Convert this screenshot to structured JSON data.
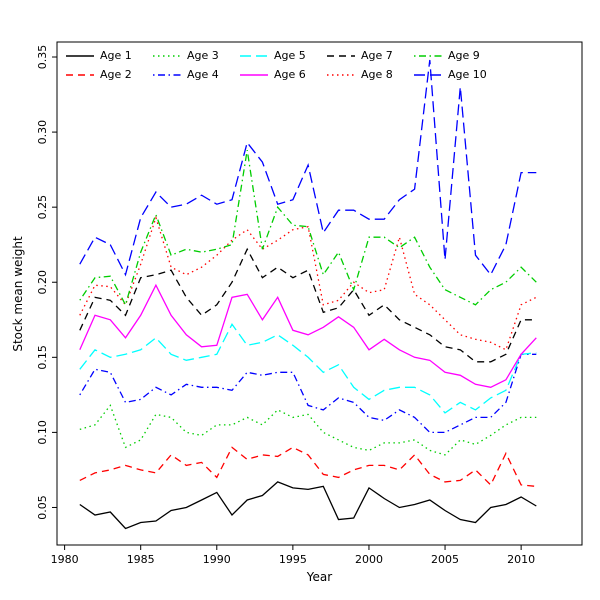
{
  "chart_data": {
    "type": "line",
    "title": "",
    "xlabel": "Year",
    "ylabel": "Stock mean weight",
    "legend_position": "top-inside",
    "grid": false,
    "xlim": [
      1979.5,
      2014
    ],
    "ylim": [
      0.025,
      0.36
    ],
    "x_ticks": [
      1980,
      1985,
      1990,
      1995,
      2000,
      2005,
      2010
    ],
    "y_ticks": [
      0.05,
      0.1,
      0.15,
      0.2,
      0.25,
      0.3,
      0.35
    ],
    "y_tick_labels": [
      "0.05",
      "0.10",
      "0.15",
      "0.20",
      "0.25",
      "0.30",
      "0.35"
    ],
    "x": [
      1981,
      1982,
      1983,
      1984,
      1985,
      1986,
      1987,
      1988,
      1989,
      1990,
      1991,
      1992,
      1993,
      1994,
      1995,
      1996,
      1997,
      1998,
      1999,
      2000,
      2001,
      2002,
      2003,
      2004,
      2005,
      2006,
      2007,
      2008,
      2009,
      2010,
      2011
    ],
    "series": [
      {
        "name": "Age 1",
        "color": "#000000",
        "line_style": "solid",
        "dash": "",
        "values": [
          0.052,
          0.045,
          0.047,
          0.036,
          0.04,
          0.041,
          0.048,
          0.05,
          0.055,
          0.06,
          0.045,
          0.055,
          0.058,
          0.067,
          0.063,
          0.062,
          0.064,
          0.042,
          0.043,
          0.063,
          0.056,
          0.05,
          0.052,
          0.055,
          0.048,
          0.042,
          0.04,
          0.05,
          0.052,
          0.057,
          0.051
        ]
      },
      {
        "name": "Age 2",
        "color": "#ff0000",
        "line_style": "dashed",
        "dash": "7,5",
        "values": [
          0.068,
          0.073,
          0.075,
          0.078,
          0.075,
          0.073,
          0.085,
          0.078,
          0.08,
          0.07,
          0.09,
          0.082,
          0.085,
          0.084,
          0.09,
          0.085,
          0.072,
          0.07,
          0.075,
          0.078,
          0.078,
          0.075,
          0.085,
          0.072,
          0.067,
          0.068,
          0.075,
          0.065,
          0.086,
          0.065,
          0.064
        ]
      },
      {
        "name": "Age 3",
        "color": "#00cd00",
        "line_style": "dotted",
        "dash": "1.5,3.5",
        "values": [
          0.102,
          0.105,
          0.118,
          0.09,
          0.095,
          0.112,
          0.11,
          0.1,
          0.098,
          0.105,
          0.105,
          0.11,
          0.105,
          0.115,
          0.11,
          0.112,
          0.1,
          0.095,
          0.09,
          0.088,
          0.093,
          0.093,
          0.095,
          0.088,
          0.085,
          0.095,
          0.092,
          0.098,
          0.105,
          0.11,
          0.11
        ]
      },
      {
        "name": "Age 4",
        "color": "#0000ff",
        "line_style": "dotdash",
        "dash": "1.5,3.5,7,3.5",
        "values": [
          0.125,
          0.142,
          0.14,
          0.12,
          0.122,
          0.13,
          0.125,
          0.132,
          0.13,
          0.13,
          0.128,
          0.14,
          0.138,
          0.14,
          0.14,
          0.118,
          0.115,
          0.123,
          0.12,
          0.11,
          0.108,
          0.115,
          0.11,
          0.1,
          0.1,
          0.105,
          0.11,
          0.11,
          0.12,
          0.152,
          0.152
        ]
      },
      {
        "name": "Age 5",
        "color": "#00ffff",
        "line_style": "longdash",
        "dash": "11,5",
        "values": [
          0.142,
          0.155,
          0.15,
          0.152,
          0.155,
          0.163,
          0.152,
          0.148,
          0.15,
          0.152,
          0.172,
          0.158,
          0.16,
          0.165,
          0.158,
          0.15,
          0.14,
          0.145,
          0.13,
          0.122,
          0.128,
          0.13,
          0.13,
          0.125,
          0.113,
          0.12,
          0.115,
          0.123,
          0.128,
          0.152,
          0.153
        ]
      },
      {
        "name": "Age 6",
        "color": "#ff00ff",
        "line_style": "solid",
        "dash": "",
        "values": [
          0.155,
          0.178,
          0.175,
          0.163,
          0.178,
          0.198,
          0.178,
          0.165,
          0.157,
          0.158,
          0.19,
          0.192,
          0.175,
          0.19,
          0.168,
          0.165,
          0.17,
          0.177,
          0.17,
          0.155,
          0.162,
          0.155,
          0.15,
          0.148,
          0.14,
          0.138,
          0.132,
          0.13,
          0.135,
          0.152,
          0.163
        ]
      },
      {
        "name": "Age 7",
        "color": "#000000",
        "line_style": "dashed",
        "dash": "7,5",
        "values": [
          0.168,
          0.19,
          0.188,
          0.178,
          0.203,
          0.205,
          0.208,
          0.19,
          0.178,
          0.185,
          0.2,
          0.222,
          0.203,
          0.21,
          0.203,
          0.208,
          0.18,
          0.183,
          0.195,
          0.178,
          0.185,
          0.175,
          0.17,
          0.165,
          0.157,
          0.155,
          0.147,
          0.147,
          0.152,
          0.175,
          0.175
        ]
      },
      {
        "name": "Age 8",
        "color": "#ff0000",
        "line_style": "dotted",
        "dash": "1.5,3.5",
        "values": [
          0.178,
          0.198,
          0.197,
          0.185,
          0.212,
          0.243,
          0.21,
          0.205,
          0.21,
          0.218,
          0.228,
          0.235,
          0.222,
          0.228,
          0.235,
          0.237,
          0.185,
          0.188,
          0.2,
          0.193,
          0.195,
          0.23,
          0.192,
          0.185,
          0.175,
          0.165,
          0.162,
          0.16,
          0.155,
          0.185,
          0.19
        ]
      },
      {
        "name": "Age 9",
        "color": "#00cd00",
        "line_style": "dotdash",
        "dash": "1.5,3.5,7,3.5",
        "values": [
          0.188,
          0.203,
          0.204,
          0.185,
          0.22,
          0.245,
          0.218,
          0.222,
          0.22,
          0.222,
          0.225,
          0.288,
          0.222,
          0.25,
          0.238,
          0.237,
          0.205,
          0.22,
          0.195,
          0.23,
          0.23,
          0.223,
          0.23,
          0.21,
          0.195,
          0.19,
          0.185,
          0.195,
          0.2,
          0.21,
          0.2
        ]
      },
      {
        "name": "Age 10",
        "color": "#0000ff",
        "line_style": "longdash",
        "dash": "11,5",
        "values": [
          0.212,
          0.23,
          0.225,
          0.205,
          0.243,
          0.26,
          0.25,
          0.252,
          0.258,
          0.252,
          0.255,
          0.293,
          0.28,
          0.252,
          0.255,
          0.278,
          0.233,
          0.248,
          0.248,
          0.242,
          0.242,
          0.255,
          0.262,
          0.348,
          0.215,
          0.33,
          0.218,
          0.205,
          0.225,
          0.273,
          0.273
        ]
      }
    ]
  }
}
